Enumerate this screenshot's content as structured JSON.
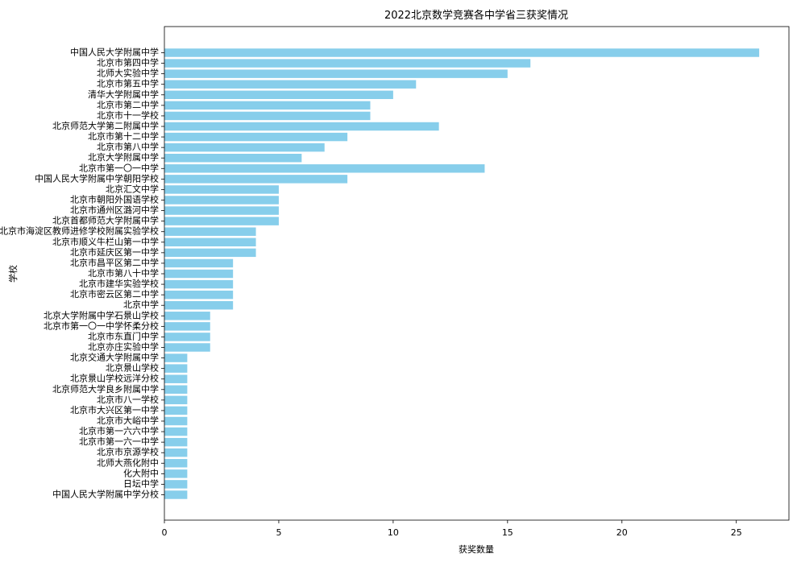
{
  "chart_data": {
    "type": "bar",
    "orientation": "horizontal",
    "title": "2022北京数学竞赛各中学省三获奖情况",
    "xlabel": "获奖数量",
    "ylabel": "学校",
    "xlim": [
      0,
      27.3
    ],
    "xticks": [
      0,
      5,
      10,
      15,
      20,
      25
    ],
    "grid": false,
    "bar_color": "#87ceeb",
    "categories": [
      "中国人民大学附属中学",
      "北京市第四中学",
      "北师大实验中学",
      "北京市第五中学",
      "清华大学附属中学",
      "北京市第二中学",
      "北京市十一学校",
      "北京师范大学第二附属中学",
      "北京市第十二中学",
      "北京市第八中学",
      "北京大学附属中学",
      "北京市第一〇一中学",
      "中国人民大学附属中学朝阳学校",
      "北京汇文中学",
      "北京市朝阳外国语学校",
      "北京市通州区潞河中学",
      "北京首都师范大学附属中学",
      "北京市海淀区教师进修学校附属实验学校",
      "北京市顺义牛栏山第一中学",
      "北京市延庆区第一中学",
      "北京市昌平区第二中学",
      "北京市第八十中学",
      "北京市建华实验学校",
      "北京市密云区第二中学",
      "北京中学",
      "北京大学附属中学石景山学校",
      "北京市第一〇一中学怀柔分校",
      "北京市东直门中学",
      "北京亦庄实验中学",
      "北京交通大学附属中学",
      "北京景山学校",
      "北京景山学校远洋分校",
      "北京师范大学良乡附属中学",
      "北京市八一学校",
      "北京市大兴区第一中学",
      "北京市大峪中学",
      "北京市第一六六中学",
      "北京市第一六一中学",
      "北京市京源学校",
      "北师大燕化附中",
      "化大附中",
      "日坛中学",
      "中国人民大学附属中学分校"
    ],
    "values": [
      26,
      16,
      15,
      11,
      10,
      9,
      9,
      12,
      8,
      7,
      6,
      14,
      8,
      5,
      5,
      5,
      5,
      4,
      4,
      4,
      3,
      3,
      3,
      3,
      3,
      2,
      2,
      2,
      2,
      1,
      1,
      1,
      1,
      1,
      1,
      1,
      1,
      1,
      1,
      1,
      1,
      1,
      1
    ]
  }
}
